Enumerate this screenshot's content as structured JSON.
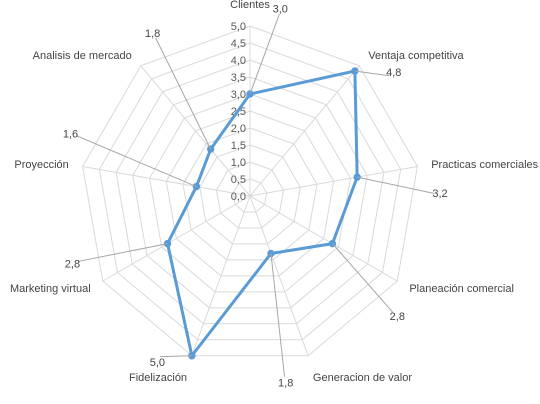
{
  "chart_data": {
    "type": "radar",
    "title": "",
    "categories": [
      "Clientes",
      "Ventaja competitiva",
      "Practicas comerciales",
      "Planeación comercial",
      "Generacion de valor",
      "Fidelización",
      "Marketing virtual",
      "Proyección",
      "Analisis de mercado"
    ],
    "values": [
      3.0,
      4.8,
      3.2,
      2.8,
      1.8,
      5.0,
      2.8,
      1.6,
      1.8
    ],
    "data_labels": [
      "3,0",
      "4,8",
      "3,2",
      "2,8",
      "1,8",
      "5,0",
      "2,8",
      "1,6",
      "1,8"
    ],
    "rlim": [
      0,
      5
    ],
    "ticks": [
      "0,0",
      "0,5",
      "1,0",
      "1,5",
      "2,0",
      "2,5",
      "3,0",
      "3,5",
      "4,0",
      "4,5",
      "5,0"
    ],
    "grid": true,
    "legend": "none",
    "colors": {
      "series": "#5B9BD5",
      "grid": "#D9D9D9",
      "leader": "#A6A6A6"
    }
  }
}
